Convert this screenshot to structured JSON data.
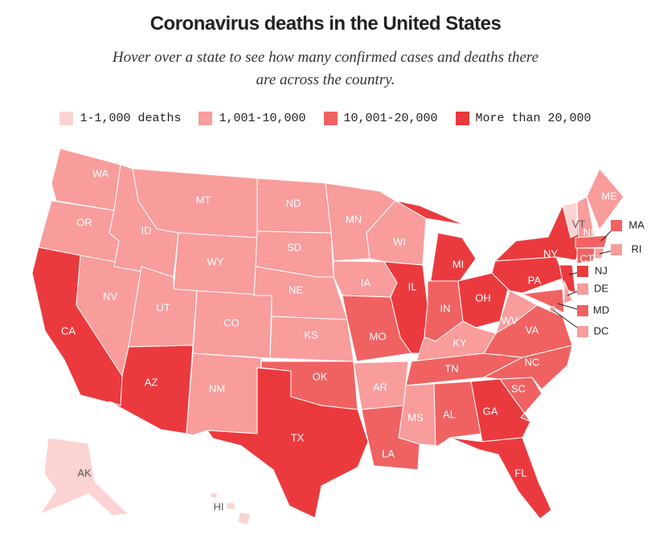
{
  "title": "Coronavirus deaths in the United States",
  "subtitle": "Hover over a state to see how many confirmed cases and deaths there are across the country.",
  "legend": [
    {
      "label": "1-1,000 deaths",
      "color": "#fcd3d3"
    },
    {
      "label": "1,001-10,000",
      "color": "#f89c9c"
    },
    {
      "label": "10,001-20,000",
      "color": "#f06262"
    },
    {
      "label": "More than 20,000",
      "color": "#eb3a3e"
    }
  ],
  "states": [
    {
      "abbr": "WA",
      "bin": 1
    },
    {
      "abbr": "OR",
      "bin": 1
    },
    {
      "abbr": "CA",
      "bin": 3
    },
    {
      "abbr": "NV",
      "bin": 1
    },
    {
      "abbr": "ID",
      "bin": 1
    },
    {
      "abbr": "MT",
      "bin": 1
    },
    {
      "abbr": "WY",
      "bin": 1
    },
    {
      "abbr": "UT",
      "bin": 1
    },
    {
      "abbr": "AZ",
      "bin": 3
    },
    {
      "abbr": "CO",
      "bin": 1
    },
    {
      "abbr": "NM",
      "bin": 1
    },
    {
      "abbr": "ND",
      "bin": 1
    },
    {
      "abbr": "SD",
      "bin": 1
    },
    {
      "abbr": "NE",
      "bin": 1
    },
    {
      "abbr": "KS",
      "bin": 1
    },
    {
      "abbr": "OK",
      "bin": 2
    },
    {
      "abbr": "TX",
      "bin": 3
    },
    {
      "abbr": "MN",
      "bin": 1
    },
    {
      "abbr": "IA",
      "bin": 1
    },
    {
      "abbr": "MO",
      "bin": 2
    },
    {
      "abbr": "AR",
      "bin": 1
    },
    {
      "abbr": "LA",
      "bin": 2
    },
    {
      "abbr": "WI",
      "bin": 1
    },
    {
      "abbr": "IL",
      "bin": 3
    },
    {
      "abbr": "MI",
      "bin": 3
    },
    {
      "abbr": "IN",
      "bin": 2
    },
    {
      "abbr": "OH",
      "bin": 3
    },
    {
      "abbr": "KY",
      "bin": 1
    },
    {
      "abbr": "TN",
      "bin": 2
    },
    {
      "abbr": "MS",
      "bin": 1
    },
    {
      "abbr": "AL",
      "bin": 2
    },
    {
      "abbr": "GA",
      "bin": 3
    },
    {
      "abbr": "FL",
      "bin": 3
    },
    {
      "abbr": "SC",
      "bin": 2
    },
    {
      "abbr": "NC",
      "bin": 2
    },
    {
      "abbr": "VA",
      "bin": 2
    },
    {
      "abbr": "WV",
      "bin": 1
    },
    {
      "abbr": "PA",
      "bin": 3
    },
    {
      "abbr": "NY",
      "bin": 3
    },
    {
      "abbr": "NJ",
      "bin": 3
    },
    {
      "abbr": "VT",
      "bin": 0
    },
    {
      "abbr": "NH",
      "bin": 1
    },
    {
      "abbr": "ME",
      "bin": 1
    },
    {
      "abbr": "MA",
      "bin": 2
    },
    {
      "abbr": "CT",
      "bin": 2
    },
    {
      "abbr": "RI",
      "bin": 1
    },
    {
      "abbr": "DE",
      "bin": 1
    },
    {
      "abbr": "MD",
      "bin": 2
    },
    {
      "abbr": "DC",
      "bin": 1
    },
    {
      "abbr": "AK",
      "bin": 0
    },
    {
      "abbr": "HI",
      "bin": 0
    }
  ]
}
